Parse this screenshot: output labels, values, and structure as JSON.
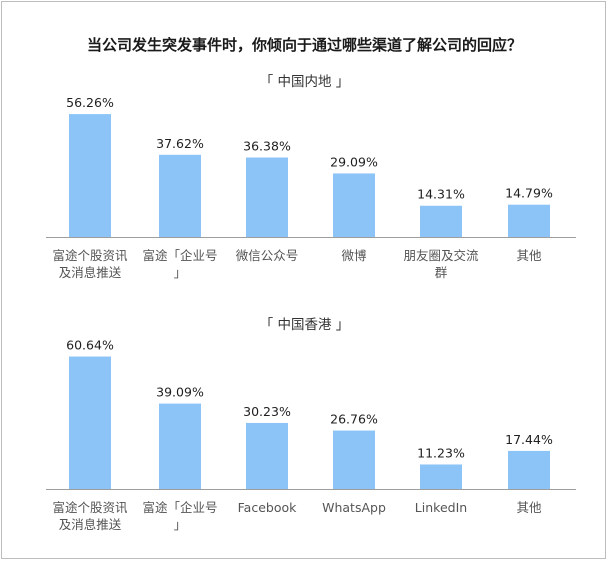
{
  "title": "当公司发生突发事件时，你倾向于通过哪些渠道了解公司的回应？",
  "chart_data": [
    {
      "type": "bar",
      "title": "「 中国内地 」",
      "categories": [
        "富途个股资讯及消息推送",
        "富途「企业号」",
        "微信公众号",
        "微博",
        "朋友圈及交流群",
        "其他"
      ],
      "values": [
        56.26,
        37.62,
        36.38,
        29.09,
        14.31,
        14.79
      ],
      "value_labels": [
        "56.26%",
        "37.62%",
        "36.38%",
        "29.09%",
        "14.31%",
        "14.79%"
      ],
      "unit": "%",
      "ylim": [
        0,
        65
      ],
      "grid": false,
      "bar_color": "#8cc4f7"
    },
    {
      "type": "bar",
      "title": "「 中国香港 」",
      "categories": [
        "富途个股资讯及消息推送",
        "富途「企业号」",
        "Facebook",
        "WhatsApp",
        "LinkedIn",
        "其他"
      ],
      "values": [
        60.64,
        39.09,
        30.23,
        26.76,
        11.23,
        17.44
      ],
      "value_labels": [
        "60.64%",
        "39.09%",
        "30.23%",
        "26.76%",
        "11.23%",
        "17.44%"
      ],
      "unit": "%",
      "ylim": [
        0,
        65
      ],
      "grid": false,
      "bar_color": "#8cc4f7"
    }
  ]
}
